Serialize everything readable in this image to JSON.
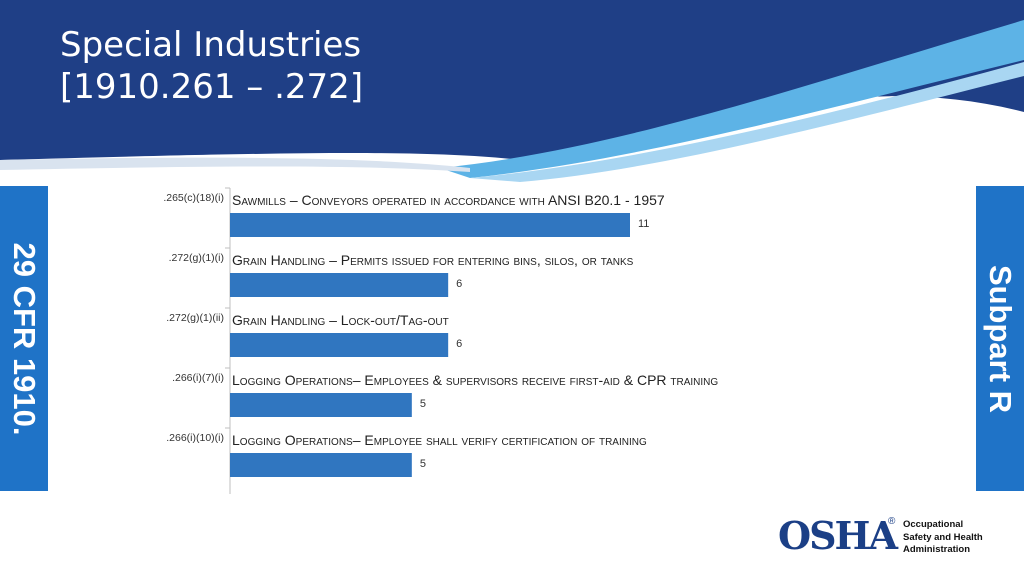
{
  "slide": {
    "title_line1": "Special Industries",
    "title_line2": "[1910.261 – .272]",
    "left_tab": "29 CFR 1910.",
    "right_tab": "Subpart R"
  },
  "logo": {
    "wordmark": "OSHA",
    "registered": "®",
    "line1": "Occupational",
    "line2": "Safety and Health",
    "line3": "Administration"
  },
  "colors": {
    "header_dark": "#1f3f86",
    "header_light": "#5db3e6",
    "bar": "#3076c0",
    "tab": "#1f73c7"
  },
  "chart_data": {
    "type": "bar",
    "orientation": "horizontal",
    "categories": [
      ".265(c)(18)(i)",
      ".272(g)(1)(i)",
      ".272(g)(1)(ii)",
      ".266(i)(7)(i)",
      ".266(i)(10)(i)"
    ],
    "descriptions": [
      "Sawmills – Conveyors operated in accordance with ANSI B20.1 - 1957",
      "Grain Handling – Permits issued for entering bins, silos, or tanks",
      "Grain Handling – Lock-out/Tag-out",
      "Logging Operations– Employees & supervisors receive first-aid & CPR training",
      "Logging Operations– Employee shall verify certification of training"
    ],
    "values": [
      11,
      6,
      6,
      5,
      5
    ],
    "xlim": [
      0,
      11
    ],
    "grid": false,
    "legend": "none"
  }
}
